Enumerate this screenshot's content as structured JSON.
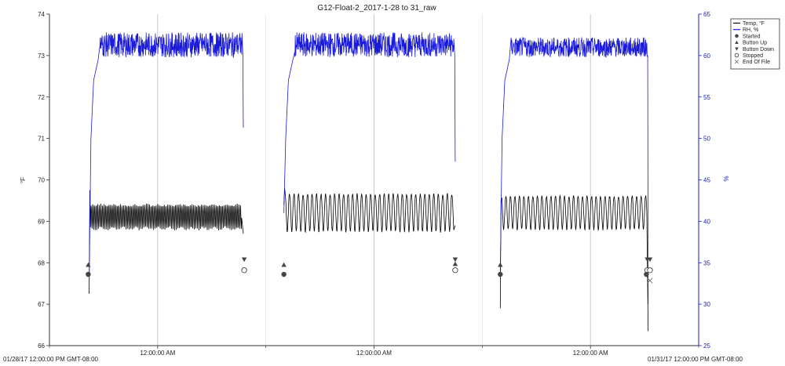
{
  "chart_data": {
    "type": "line",
    "title": "G12-Float-2_2017-1-28 to 31_raw",
    "y_left": {
      "label": "°F",
      "ylim": [
        66,
        74
      ],
      "ticks": [
        "66",
        "67",
        "68",
        "69",
        "70",
        "71",
        "72",
        "73",
        "74"
      ]
    },
    "y_right": {
      "label": "%",
      "ylim": [
        25,
        65
      ],
      "ticks": [
        "25",
        "30",
        "35",
        "40",
        "45",
        "50",
        "55",
        "60",
        "65"
      ]
    },
    "x_axis": {
      "start_label": "01/28/17 12:00:00 PM GMT-08:00",
      "end_label": "01/31/17 12:00:00 PM GMT-08:00",
      "major_labels": [
        "12:00:00 AM",
        "12:00:00 AM",
        "12:00:00 AM"
      ],
      "domain_hours": [
        0,
        72
      ],
      "major_tick_hours": [
        12,
        36,
        60
      ],
      "minor_tick_hours": [
        0,
        24,
        48,
        72
      ]
    },
    "grid": true,
    "legend_position": "top-right",
    "legend": [
      {
        "name": "Temp, °F",
        "marker": "line",
        "color": "#000000"
      },
      {
        "name": "RH, %",
        "marker": "line",
        "color": "#1a1adb"
      },
      {
        "name": "Started",
        "marker": "circle-filled",
        "color": "#444444"
      },
      {
        "name": "Button Up",
        "marker": "triangle-up",
        "color": "#444444"
      },
      {
        "name": "Button Down",
        "marker": "triangle-down",
        "color": "#444444"
      },
      {
        "name": "Stopped",
        "marker": "circle-open",
        "color": "#444444"
      },
      {
        "name": "End Of File",
        "marker": "cross",
        "color": "#444444"
      }
    ],
    "series": [
      {
        "name": "Temp, °F",
        "axis": "left",
        "color": "#000000",
        "segments": [
          {
            "start_h": 4.4,
            "end_h": 21.5,
            "start_value": 67.25,
            "peak_value": 69.75,
            "low": 68.8,
            "high": 69.4,
            "cycle_h": 0.18,
            "end_value": 68.7
          },
          {
            "start_h": 26.0,
            "end_h": 45.0,
            "start_value": 69.4,
            "peak_value": 69.8,
            "low": 68.75,
            "high": 69.65,
            "cycle_h": 0.5,
            "end_value": 68.9
          },
          {
            "start_h": 50.0,
            "end_h": 66.4,
            "start_value": 66.9,
            "peak_value": 69.5,
            "low": 68.8,
            "high": 69.6,
            "cycle_h": 0.5,
            "end_value": 66.35
          }
        ]
      },
      {
        "name": "RH, %",
        "axis": "right",
        "color": "#1a1adb",
        "segments": [
          {
            "start_h": 4.4,
            "end_h": 21.5,
            "start_value": 32,
            "plateau_low": 59.8,
            "plateau_high": 62.8,
            "end_value": 51.3
          },
          {
            "start_h": 26.0,
            "end_h": 45.0,
            "start_value": 41,
            "plateau_low": 59.8,
            "plateau_high": 62.8,
            "end_value": 47.2
          },
          {
            "start_h": 50.0,
            "end_h": 66.4,
            "start_value": 34,
            "plateau_low": 59.8,
            "plateau_high": 62.2,
            "end_value": 30
          }
        ]
      }
    ],
    "events": [
      {
        "type": "Started",
        "hour": 4.3,
        "value": 67.72
      },
      {
        "type": "Button Up",
        "hour": 4.3,
        "value": 67.95
      },
      {
        "type": "Button Down",
        "hour": 21.6,
        "value": 68.08
      },
      {
        "type": "Stopped",
        "hour": 21.6,
        "value": 67.82
      },
      {
        "type": "Started",
        "hour": 26.0,
        "value": 67.72
      },
      {
        "type": "Button Up",
        "hour": 26.0,
        "value": 67.95
      },
      {
        "type": "Button Down",
        "hour": 45.0,
        "value": 68.08
      },
      {
        "type": "Button Up",
        "hour": 45.0,
        "value": 67.97
      },
      {
        "type": "Stopped",
        "hour": 45.0,
        "value": 67.82
      },
      {
        "type": "Started",
        "hour": 50.0,
        "value": 67.72
      },
      {
        "type": "Button Up",
        "hour": 50.0,
        "value": 67.95
      },
      {
        "type": "Button Down",
        "hour": 66.3,
        "value": 68.08
      },
      {
        "type": "Button Down",
        "hour": 66.6,
        "value": 68.08
      },
      {
        "type": "Stopped",
        "hour": 66.3,
        "value": 67.82
      },
      {
        "type": "Stopped",
        "hour": 66.6,
        "value": 67.82
      },
      {
        "type": "Started",
        "hour": 66.2,
        "value": 67.72
      },
      {
        "type": "End Of File",
        "hour": 66.6,
        "value": 67.57
      }
    ]
  }
}
